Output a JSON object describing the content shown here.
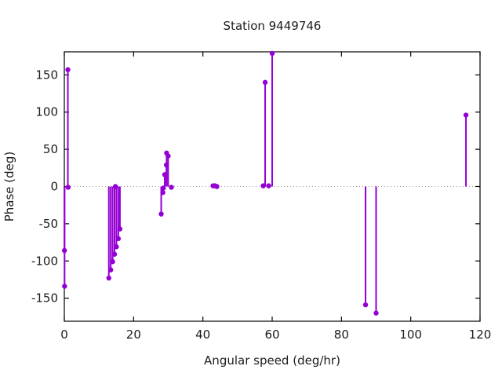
{
  "title": "Station 9449746",
  "chart_data": {
    "type": "stem",
    "title": "Station 9449746",
    "xlabel": "Angular speed (deg/hr)",
    "ylabel": "Phase (deg)",
    "xlim": [
      0,
      120
    ],
    "ylim": [
      -181,
      181
    ],
    "xticks": [
      0,
      20,
      40,
      60,
      80,
      100,
      120
    ],
    "yticks": [
      -150,
      -100,
      -50,
      0,
      50,
      100,
      150
    ],
    "grid": false,
    "legend_position": "none",
    "zero_line": true,
    "marker": "filled-circle",
    "series_color": "#9400d3",
    "zero_line_color": "#999999",
    "border_color": "#000000",
    "text_color": "#1c1c1c",
    "points": [
      [
        0.04,
        -86
      ],
      [
        0.08,
        -134
      ],
      [
        1.02,
        157
      ],
      [
        1.1,
        -1
      ],
      [
        12.85,
        -123
      ],
      [
        13.4,
        -112
      ],
      [
        13.94,
        -101
      ],
      [
        14.5,
        -91
      ],
      [
        14.75,
        0
      ],
      [
        15.04,
        -81
      ],
      [
        15.59,
        -70
      ],
      [
        16.05,
        -57
      ],
      [
        27.97,
        -37
      ],
      [
        28.44,
        -8
      ],
      [
        28.6,
        -2
      ],
      [
        28.98,
        16
      ],
      [
        29.46,
        29
      ],
      [
        29.53,
        45
      ],
      [
        29.97,
        41
      ],
      [
        30.9,
        -1
      ],
      [
        42.93,
        1
      ],
      [
        43.48,
        1
      ],
      [
        44.03,
        0
      ],
      [
        57.42,
        1
      ],
      [
        57.97,
        140
      ],
      [
        58.98,
        1
      ],
      [
        60.0,
        179
      ],
      [
        86.95,
        -159
      ],
      [
        90.0,
        -170
      ],
      [
        115.94,
        96
      ]
    ]
  }
}
